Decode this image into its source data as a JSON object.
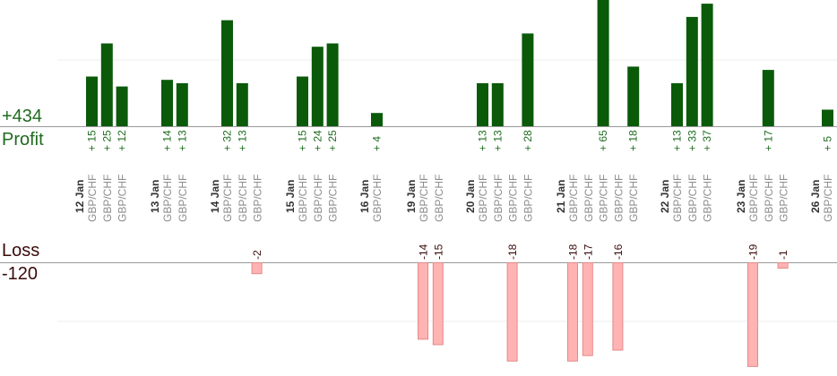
{
  "summary": {
    "profit_total": "+434",
    "profit_label": "Profit",
    "loss_label": "Loss",
    "loss_total": "-120"
  },
  "colors": {
    "profit_bar": "#0a5a0a",
    "profit_text": "#1e6b1e",
    "loss_bar": "#ffb3b3",
    "loss_stroke": "#e58a8a",
    "loss_text": "#3a0a0a",
    "pair_text": "#8c8c8c",
    "date_text": "#333333",
    "axis": "#999999",
    "grid": "#ececec"
  },
  "chart_data": {
    "type": "bar",
    "pair": "GBP/CHF",
    "groups": [
      {
        "date": "12 Jan",
        "trades": [
          15,
          25,
          12
        ]
      },
      {
        "date": "13 Jan",
        "trades": [
          14,
          13
        ]
      },
      {
        "date": "14 Jan",
        "trades": [
          32,
          13,
          -2
        ]
      },
      {
        "date": "15 Jan",
        "trades": [
          15,
          24,
          25
        ]
      },
      {
        "date": "16 Jan",
        "trades": [
          4
        ]
      },
      {
        "date": "19 Jan",
        "trades": [
          -14,
          -15
        ]
      },
      {
        "date": "20 Jan",
        "trades": [
          13,
          13,
          -18,
          28
        ]
      },
      {
        "date": "21 Jan",
        "trades": [
          -18,
          -17,
          65,
          -16,
          18
        ]
      },
      {
        "date": "22 Jan",
        "trades": [
          13,
          33,
          37
        ]
      },
      {
        "date": "23 Jan",
        "trades": [
          -19,
          17,
          -1
        ]
      },
      {
        "date": "26 Jan",
        "trades": [
          5
        ]
      }
    ],
    "y_profit_range": [
      0,
      20
    ],
    "y_loss_range": [
      -20,
      0
    ],
    "grid": true,
    "legend": "none"
  }
}
